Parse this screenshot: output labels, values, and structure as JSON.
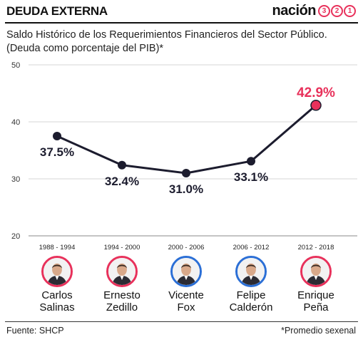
{
  "header": {
    "title": "DEUDA EXTERNA",
    "brand_word": "nación",
    "brand_digits": [
      "3",
      "2",
      "1"
    ],
    "accent_color": "#e8315b"
  },
  "subtitle_line1": "Saldo Histórico de los Requerimientos Financieros del Sector Público.",
  "subtitle_line2": "(Deuda como porcentaje del PIB)*",
  "chart_data": {
    "type": "line",
    "title": "Saldo Histórico de los Requerimientos Financieros del Sector Público. (Deuda como porcentaje del PIB)*",
    "xlabel": "",
    "ylabel": "",
    "ylim": [
      20,
      50
    ],
    "yticks": [
      20,
      30,
      40,
      50
    ],
    "grid": true,
    "categories": [
      "1988 - 1994",
      "1994 - 2000",
      "2000 - 2006",
      "2006 - 2012",
      "2012 - 2018"
    ],
    "values": [
      37.5,
      32.4,
      31.0,
      33.1,
      42.9
    ],
    "labels": [
      "37.5%",
      "32.4%",
      "31.0%",
      "33.1%",
      "42.9%"
    ],
    "line_color": "#1c1c2e",
    "highlight_color": "#e8315b"
  },
  "presidents": [
    {
      "name": "Carlos\nSalinas",
      "period": "1988 - 1994",
      "ring": "red",
      "icon": "portrait-icon"
    },
    {
      "name": "Ernesto\nZedillo",
      "period": "1994 - 2000",
      "ring": "red",
      "icon": "portrait-icon"
    },
    {
      "name": "Vicente\nFox",
      "period": "2000 - 2006",
      "ring": "blue",
      "icon": "portrait-icon"
    },
    {
      "name": "Felipe\nCalderón",
      "period": "2006 - 2012",
      "ring": "blue",
      "icon": "portrait-icon"
    },
    {
      "name": "Enrique\nPeña",
      "period": "2012 - 2018",
      "ring": "red",
      "icon": "portrait-icon"
    }
  ],
  "footer": {
    "source": "Fuente: SHCP",
    "note": "*Promedio sexenal"
  }
}
